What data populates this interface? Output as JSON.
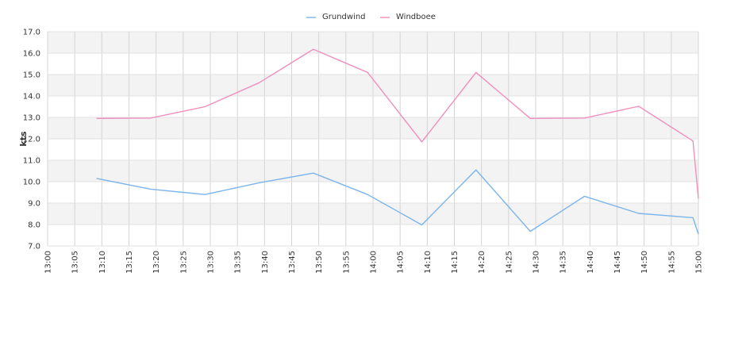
{
  "chart_data": {
    "type": "line",
    "title": "",
    "xlabel": "",
    "ylabel": "kts",
    "x_ticks": [
      "13:00",
      "13:05",
      "13:10",
      "13:15",
      "13:20",
      "13:25",
      "13:30",
      "13:35",
      "13:40",
      "13:45",
      "13:50",
      "13:55",
      "14:00",
      "14:05",
      "14:10",
      "14:15",
      "14:20",
      "14:25",
      "14:30",
      "14:35",
      "14:40",
      "14:45",
      "14:50",
      "14:55",
      "15:00"
    ],
    "y_ticks": [
      "7.0",
      "8.0",
      "9.0",
      "10.0",
      "11.0",
      "12.0",
      "13.0",
      "14.0",
      "15.0",
      "16.0",
      "17.0"
    ],
    "xlim": [
      "13:00",
      "15:00"
    ],
    "ylim": [
      7.0,
      17.0
    ],
    "grid": true,
    "legend_position": "top-center",
    "series": [
      {
        "name": "Grundwind",
        "color": "#7cb5ec",
        "points": [
          {
            "x": "13:09",
            "y": 10.15
          },
          {
            "x": "13:19",
            "y": 9.65
          },
          {
            "x": "13:29",
            "y": 9.4
          },
          {
            "x": "13:39",
            "y": 9.95
          },
          {
            "x": "13:49",
            "y": 10.4
          },
          {
            "x": "13:59",
            "y": 9.4
          },
          {
            "x": "14:09",
            "y": 7.98
          },
          {
            "x": "14:19",
            "y": 10.55
          },
          {
            "x": "14:29",
            "y": 7.68
          },
          {
            "x": "14:39",
            "y": 9.32
          },
          {
            "x": "14:49",
            "y": 8.52
          },
          {
            "x": "14:59",
            "y": 8.32
          },
          {
            "x": "15:00",
            "y": 7.55
          }
        ]
      },
      {
        "name": "Windboee",
        "color": "#f08fbd",
        "points": [
          {
            "x": "13:09",
            "y": 12.95
          },
          {
            "x": "13:19",
            "y": 12.97
          },
          {
            "x": "13:29",
            "y": 13.5
          },
          {
            "x": "13:39",
            "y": 14.62
          },
          {
            "x": "13:49",
            "y": 16.18
          },
          {
            "x": "13:59",
            "y": 15.1
          },
          {
            "x": "14:09",
            "y": 11.86
          },
          {
            "x": "14:19",
            "y": 15.1
          },
          {
            "x": "14:29",
            "y": 12.95
          },
          {
            "x": "14:39",
            "y": 12.97
          },
          {
            "x": "14:49",
            "y": 13.52
          },
          {
            "x": "14:59",
            "y": 11.9
          },
          {
            "x": "15:00",
            "y": 9.2
          }
        ]
      }
    ]
  }
}
